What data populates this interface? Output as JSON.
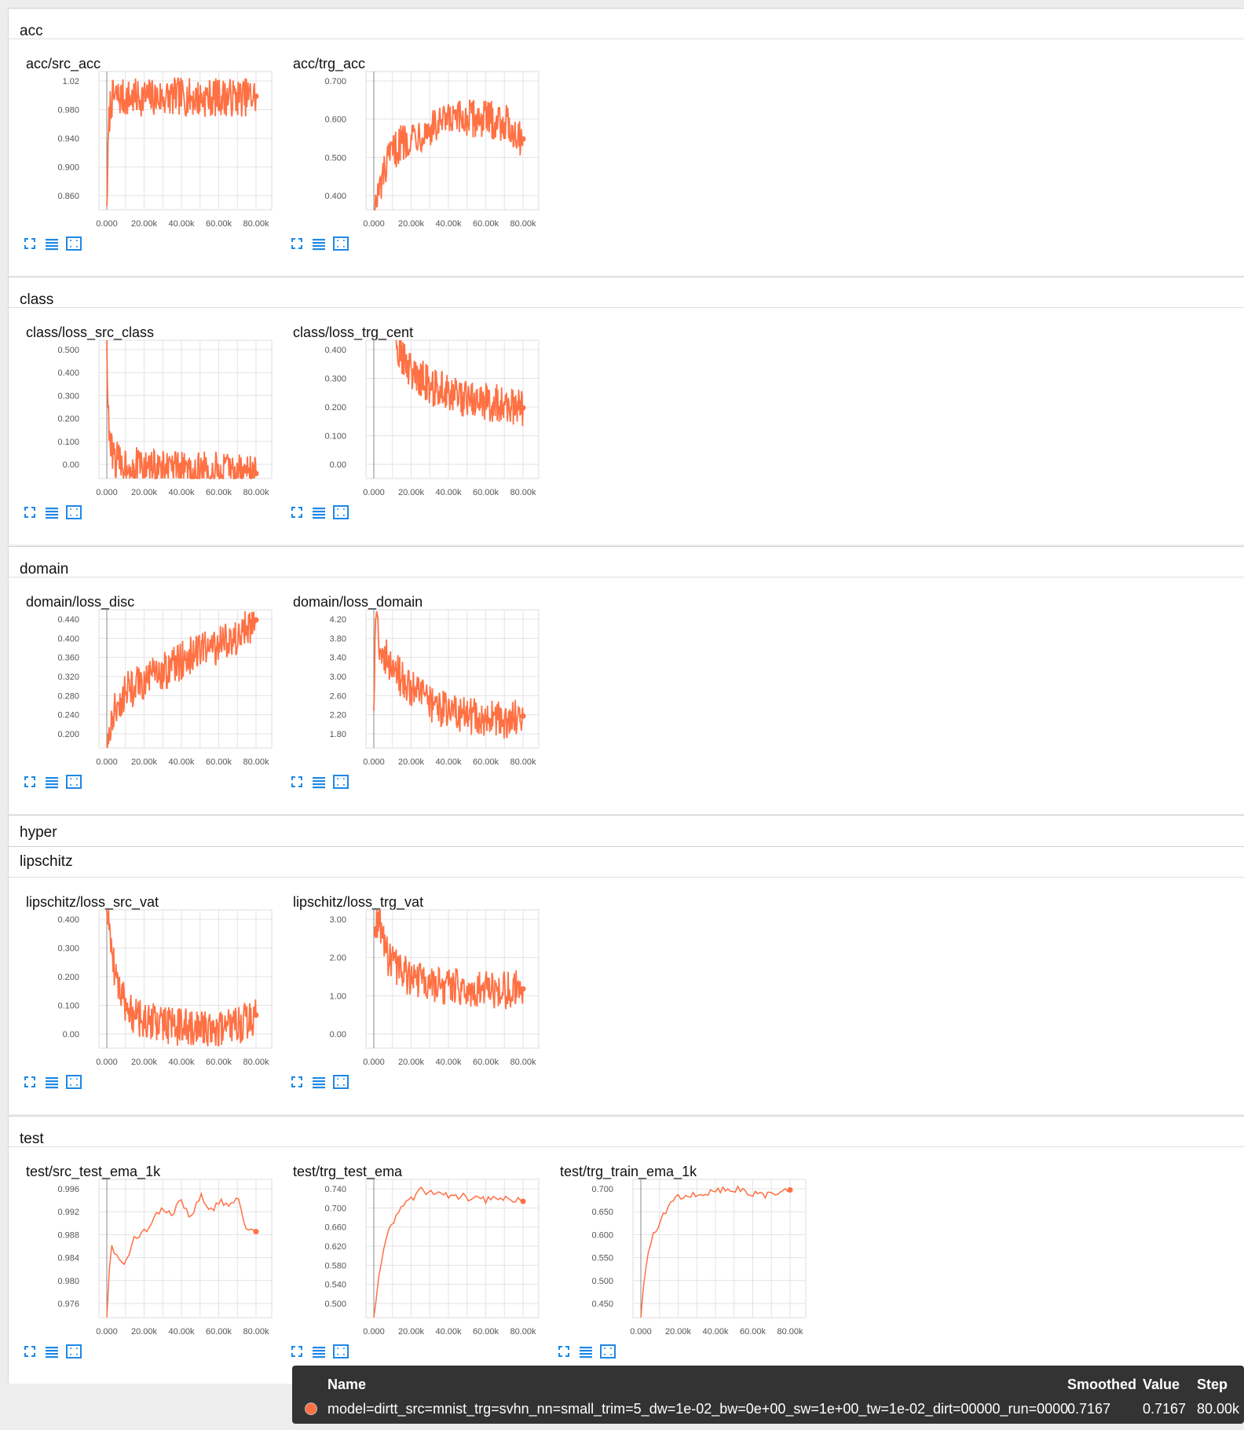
{
  "accent_color": "#ff7043",
  "sections": [
    {
      "title": "acc",
      "cards": [
        {
          "title": "acc/src_acc",
          "yticks": [
            "1.02",
            "0.980",
            "0.940",
            "0.900",
            "0.860"
          ],
          "xticks": [
            "0.000",
            "20.00k",
            "40.00k",
            "60.00k",
            "80.00k"
          ]
        },
        {
          "title": "acc/trg_acc",
          "yticks": [
            "0.700",
            "0.600",
            "0.500",
            "0.400"
          ],
          "xticks": [
            "0.000",
            "20.00k",
            "40.00k",
            "60.00k",
            "80.00k"
          ]
        }
      ]
    },
    {
      "title": "class",
      "cards": [
        {
          "title": "class/loss_src_class",
          "yticks": [
            "0.500",
            "0.400",
            "0.300",
            "0.200",
            "0.100",
            "0.00"
          ],
          "xticks": [
            "0.000",
            "20.00k",
            "40.00k",
            "60.00k",
            "80.00k"
          ]
        },
        {
          "title": "class/loss_trg_cent",
          "yticks": [
            "0.400",
            "0.300",
            "0.200",
            "0.100",
            "0.00"
          ],
          "xticks": [
            "0.000",
            "20.00k",
            "40.00k",
            "60.00k",
            "80.00k"
          ]
        }
      ]
    },
    {
      "title": "domain",
      "cards": [
        {
          "title": "domain/loss_disc",
          "yticks": [
            "0.440",
            "0.400",
            "0.360",
            "0.320",
            "0.280",
            "0.240",
            "0.200"
          ],
          "xticks": [
            "0.000",
            "20.00k",
            "40.00k",
            "60.00k",
            "80.00k"
          ]
        },
        {
          "title": "domain/loss_domain",
          "yticks": [
            "4.20",
            "3.80",
            "3.40",
            "3.00",
            "2.60",
            "2.20",
            "1.80"
          ],
          "xticks": [
            "0.000",
            "20.00k",
            "40.00k",
            "60.00k",
            "80.00k"
          ]
        }
      ]
    },
    {
      "title": "hyper",
      "cards": []
    },
    {
      "title": "lipschitz",
      "cards": [
        {
          "title": "lipschitz/loss_src_vat",
          "yticks": [
            "0.400",
            "0.300",
            "0.200",
            "0.100",
            "0.00"
          ],
          "xticks": [
            "0.000",
            "20.00k",
            "40.00k",
            "60.00k",
            "80.00k"
          ]
        },
        {
          "title": "lipschitz/loss_trg_vat",
          "yticks": [
            "3.00",
            "2.00",
            "1.00",
            "0.00"
          ],
          "xticks": [
            "0.000",
            "20.00k",
            "40.00k",
            "60.00k",
            "80.00k"
          ]
        }
      ]
    },
    {
      "title": "test",
      "cards": [
        {
          "title": "test/src_test_ema_1k",
          "yticks": [
            "0.996",
            "0.992",
            "0.988",
            "0.984",
            "0.980",
            "0.976"
          ],
          "xticks": [
            "0.000",
            "20.00k",
            "40.00k",
            "60.00k",
            "80.00k"
          ]
        },
        {
          "title": "test/trg_test_ema",
          "yticks": [
            "0.740",
            "0.700",
            "0.660",
            "0.620",
            "0.580",
            "0.540",
            "0.500"
          ],
          "xticks": [
            "0.000",
            "20.00k",
            "40.00k",
            "60.00k",
            "80.00k"
          ]
        },
        {
          "title": "test/trg_train_ema_1k",
          "yticks": [
            "0.700",
            "0.650",
            "0.600",
            "0.550",
            "0.500",
            "0.450"
          ],
          "xticks": [
            "0.000",
            "20.00k",
            "40.00k",
            "60.00k",
            "80.00k"
          ]
        }
      ]
    }
  ],
  "tooltip": {
    "name_header": "Name",
    "smoothed_header": "Smoothed",
    "value_header": "Value",
    "step_header": "Step",
    "run_name": "model=dirtt_src=mnist_trg=svhn_nn=small_trim=5_dw=1e-02_bw=0e+00_sw=1e+00_tw=1e-02_dirt=00000_run=0000",
    "smoothed": "0.7167",
    "value": "0.7167",
    "step": "80.00k"
  },
  "chart_data": [
    {
      "type": "line",
      "title": "acc/src_acc",
      "xlim": [
        0,
        80000
      ],
      "ylim": [
        0.84,
        1.03
      ],
      "x": [
        0,
        1000,
        2000,
        5000,
        10000,
        20000,
        30000,
        40000,
        50000,
        60000,
        70000,
        80000
      ],
      "series": [
        {
          "values": [
            0.845,
            0.95,
            0.99,
            0.995,
            0.993,
            0.995,
            0.994,
            0.996,
            0.993,
            0.995,
            0.994,
            0.996
          ]
        }
      ]
    },
    {
      "type": "line",
      "title": "acc/trg_acc",
      "xlim": [
        0,
        80000
      ],
      "ylim": [
        0.35,
        0.76
      ],
      "x": [
        0,
        2000,
        5000,
        10000,
        15000,
        20000,
        30000,
        40000,
        50000,
        60000,
        70000,
        80000
      ],
      "series": [
        {
          "values": [
            0.35,
            0.38,
            0.45,
            0.52,
            0.55,
            0.57,
            0.59,
            0.61,
            0.62,
            0.62,
            0.61,
            0.56
          ]
        }
      ]
    },
    {
      "type": "line",
      "title": "class/loss_src_class",
      "xlim": [
        0,
        80000
      ],
      "ylim": [
        0,
        0.55
      ],
      "x": [
        0,
        500,
        1000,
        2000,
        4000,
        8000,
        15000,
        25000,
        40000,
        55000,
        70000,
        80000
      ],
      "series": [
        {
          "values": [
            0.55,
            0.35,
            0.2,
            0.12,
            0.08,
            0.06,
            0.05,
            0.04,
            0.03,
            0.03,
            0.03,
            0.02
          ]
        }
      ]
    },
    {
      "type": "line",
      "title": "class/loss_trg_cent",
      "xlim": [
        0,
        80000
      ],
      "ylim": [
        0,
        0.45
      ],
      "x": [
        12000,
        15000,
        20000,
        25000,
        30000,
        40000,
        50000,
        60000,
        70000,
        80000
      ],
      "series": [
        {
          "values": [
            0.45,
            0.4,
            0.35,
            0.33,
            0.3,
            0.28,
            0.26,
            0.25,
            0.24,
            0.23
          ]
        }
      ]
    },
    {
      "type": "line",
      "title": "domain/loss_disc",
      "xlim": [
        0,
        80000
      ],
      "ylim": [
        0.18,
        0.45
      ],
      "x": [
        0,
        2000,
        5000,
        10000,
        20000,
        30000,
        40000,
        50000,
        60000,
        70000,
        80000
      ],
      "series": [
        {
          "values": [
            0.19,
            0.22,
            0.26,
            0.29,
            0.31,
            0.33,
            0.35,
            0.37,
            0.38,
            0.4,
            0.43
          ]
        }
      ]
    },
    {
      "type": "line",
      "title": "domain/loss_domain",
      "xlim": [
        0,
        80000
      ],
      "ylim": [
        1.7,
        4.3
      ],
      "x": [
        0,
        1000,
        3000,
        5000,
        10000,
        20000,
        30000,
        40000,
        50000,
        60000,
        70000,
        80000
      ],
      "series": [
        {
          "values": [
            2.4,
            4.3,
            3.7,
            3.5,
            3.2,
            2.8,
            2.55,
            2.4,
            2.3,
            2.25,
            2.22,
            2.3
          ]
        }
      ]
    },
    {
      "type": "line",
      "title": "lipschitz/loss_src_vat",
      "xlim": [
        0,
        80000
      ],
      "ylim": [
        -0.02,
        0.44
      ],
      "x": [
        0,
        2000,
        4000,
        8000,
        12000,
        20000,
        30000,
        40000,
        55000,
        70000,
        80000
      ],
      "series": [
        {
          "values": [
            0.44,
            0.35,
            0.25,
            0.15,
            0.1,
            0.07,
            0.06,
            0.05,
            0.05,
            0.05,
            0.09
          ]
        }
      ]
    },
    {
      "type": "line",
      "title": "lipschitz/loss_trg_vat",
      "xlim": [
        0,
        80000
      ],
      "ylim": [
        -0.2,
        3.3
      ],
      "x": [
        0,
        1000,
        3000,
        5000,
        8000,
        15000,
        25000,
        40000,
        55000,
        70000,
        80000
      ],
      "series": [
        {
          "values": [
            2.7,
            3.0,
            3.1,
            2.5,
            2.0,
            1.7,
            1.5,
            1.35,
            1.3,
            1.25,
            1.3
          ]
        }
      ]
    },
    {
      "type": "line",
      "title": "test/src_test_ema_1k",
      "xlim": [
        0,
        80000
      ],
      "ylim": [
        0.975,
        0.9975
      ],
      "x": [
        0,
        2000,
        5000,
        10000,
        15000,
        20000,
        25000,
        30000,
        35000,
        40000,
        45000,
        50000,
        55000,
        60000,
        65000,
        70000,
        75000,
        80000
      ],
      "series": [
        {
          "values": [
            0.975,
            0.987,
            0.985,
            0.984,
            0.988,
            0.989,
            0.991,
            0.993,
            0.992,
            0.994,
            0.991,
            0.995,
            0.992,
            0.994,
            0.993,
            0.995,
            0.989,
            0.989
          ]
        }
      ]
    },
    {
      "type": "line",
      "title": "test/trg_test_ema",
      "xlim": [
        0,
        80000
      ],
      "ylim": [
        0.49,
        0.76
      ],
      "x": [
        0,
        2000,
        5000,
        8000,
        12000,
        16000,
        20000,
        25000,
        30000,
        40000,
        50000,
        60000,
        70000,
        80000
      ],
      "series": [
        {
          "values": [
            0.49,
            0.55,
            0.62,
            0.66,
            0.69,
            0.71,
            0.72,
            0.74,
            0.735,
            0.73,
            0.725,
            0.72,
            0.725,
            0.717
          ]
        }
      ]
    },
    {
      "type": "line",
      "title": "test/trg_train_ema_1k",
      "xlim": [
        0,
        80000
      ],
      "ylim": [
        0.42,
        0.72
      ],
      "x": [
        0,
        2000,
        5000,
        8000,
        12000,
        16000,
        20000,
        25000,
        30000,
        40000,
        50000,
        60000,
        70000,
        80000
      ],
      "series": [
        {
          "values": [
            0.42,
            0.52,
            0.58,
            0.61,
            0.64,
            0.67,
            0.68,
            0.69,
            0.685,
            0.695,
            0.7,
            0.69,
            0.685,
            0.697
          ]
        }
      ]
    }
  ]
}
